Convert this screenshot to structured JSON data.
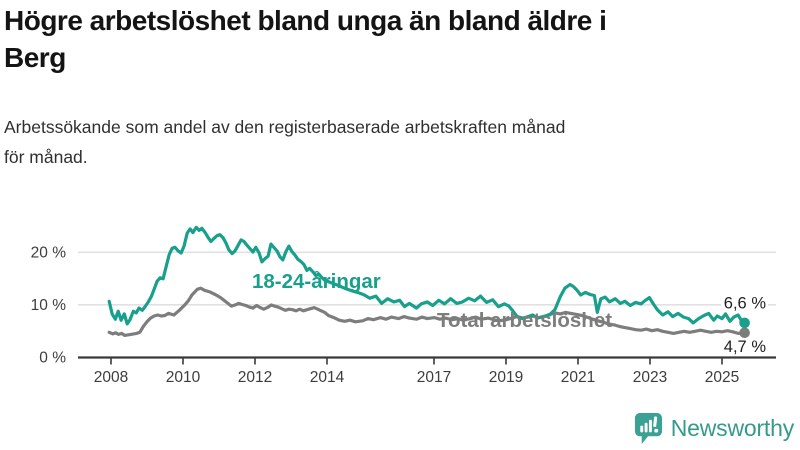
{
  "header": {
    "title_line1": "Högre arbetslöshet bland unga än bland äldre i",
    "title_line2": "Berg",
    "subtitle_line1": "Arbetssökande som andel av den registerbaserade arbetskraften månad",
    "subtitle_line2": "för månad."
  },
  "logo": {
    "name": "Newsworthy",
    "color": "#35998C"
  },
  "chart_data": {
    "type": "line",
    "title": "Högre arbetslöshet bland unga än bland äldre i Berg",
    "subtitle": "Arbetssökande som andel av den registerbaserade arbetskraften månad för månad.",
    "unit": "percent",
    "grid": "horizontal",
    "legend": "inline-labels",
    "x_axis": {
      "ticks": [
        "2008",
        "2010",
        "2012",
        "2014",
        "2017",
        "2019",
        "2021",
        "2023",
        "2025"
      ],
      "range": [
        2007.9,
        2025.75
      ]
    },
    "y_axis": {
      "ticks": [
        {
          "value": 0,
          "label": "0 %"
        },
        {
          "value": 10,
          "label": "10 %"
        },
        {
          "value": 20,
          "label": "20 %"
        }
      ],
      "range": [
        0,
        26
      ]
    },
    "series": [
      {
        "name": "18-24-åringar",
        "color": "#19A08C",
        "end_label": "6,6 %",
        "end_value": 6.6,
        "points": [
          [
            2007.95,
            10.7
          ],
          [
            2008.03,
            8.3
          ],
          [
            2008.12,
            7.3
          ],
          [
            2008.2,
            8.8
          ],
          [
            2008.28,
            7.1
          ],
          [
            2008.37,
            8.3
          ],
          [
            2008.45,
            6.4
          ],
          [
            2008.53,
            7.2
          ],
          [
            2008.62,
            8.8
          ],
          [
            2008.7,
            8.5
          ],
          [
            2008.78,
            9.4
          ],
          [
            2008.87,
            9.0
          ],
          [
            2008.95,
            9.7
          ],
          [
            2009.03,
            10.5
          ],
          [
            2009.12,
            11.6
          ],
          [
            2009.2,
            13.0
          ],
          [
            2009.28,
            14.5
          ],
          [
            2009.37,
            15.2
          ],
          [
            2009.45,
            15.0
          ],
          [
            2009.53,
            17.2
          ],
          [
            2009.62,
            19.6
          ],
          [
            2009.7,
            20.8
          ],
          [
            2009.78,
            21.0
          ],
          [
            2009.87,
            20.3
          ],
          [
            2009.95,
            19.9
          ],
          [
            2010.03,
            21.2
          ],
          [
            2010.12,
            23.7
          ],
          [
            2010.2,
            24.5
          ],
          [
            2010.28,
            23.8
          ],
          [
            2010.37,
            24.8
          ],
          [
            2010.45,
            24.2
          ],
          [
            2010.53,
            24.6
          ],
          [
            2010.62,
            23.8
          ],
          [
            2010.7,
            22.9
          ],
          [
            2010.78,
            22.1
          ],
          [
            2010.87,
            22.7
          ],
          [
            2010.95,
            23.2
          ],
          [
            2011.03,
            23.4
          ],
          [
            2011.12,
            22.8
          ],
          [
            2011.2,
            21.8
          ],
          [
            2011.28,
            20.5
          ],
          [
            2011.37,
            19.8
          ],
          [
            2011.45,
            20.3
          ],
          [
            2011.53,
            21.3
          ],
          [
            2011.62,
            22.4
          ],
          [
            2011.7,
            22.1
          ],
          [
            2011.78,
            21.4
          ],
          [
            2011.87,
            20.7
          ],
          [
            2011.95,
            20.1
          ],
          [
            2012.03,
            21.0
          ],
          [
            2012.12,
            19.9
          ],
          [
            2012.2,
            18.2
          ],
          [
            2012.28,
            18.8
          ],
          [
            2012.37,
            19.3
          ],
          [
            2012.45,
            21.6
          ],
          [
            2012.53,
            21.0
          ],
          [
            2012.62,
            20.3
          ],
          [
            2012.7,
            19.2
          ],
          [
            2012.78,
            18.6
          ],
          [
            2012.87,
            20.2
          ],
          [
            2012.95,
            21.2
          ],
          [
            2013.03,
            20.2
          ],
          [
            2013.12,
            19.5
          ],
          [
            2013.2,
            18.7
          ],
          [
            2013.28,
            18.3
          ],
          [
            2013.37,
            17.7
          ],
          [
            2013.45,
            16.6
          ],
          [
            2013.53,
            17.0
          ],
          [
            2013.62,
            16.3
          ],
          [
            2013.7,
            15.6
          ],
          [
            2013.78,
            15.9
          ],
          [
            2013.87,
            15.2
          ],
          [
            2013.95,
            14.7
          ],
          [
            2014.1,
            14.3
          ],
          [
            2014.3,
            13.8
          ],
          [
            2014.5,
            13.2
          ],
          [
            2014.7,
            12.7
          ],
          [
            2014.9,
            12.3
          ],
          [
            2015.05,
            11.9
          ],
          [
            2015.2,
            11.3
          ],
          [
            2015.37,
            11.7
          ],
          [
            2015.53,
            10.3
          ],
          [
            2015.7,
            11.2
          ],
          [
            2015.87,
            10.6
          ],
          [
            2016.03,
            10.9
          ],
          [
            2016.17,
            9.7
          ],
          [
            2016.3,
            10.3
          ],
          [
            2016.5,
            9.4
          ],
          [
            2016.63,
            10.2
          ],
          [
            2016.8,
            10.6
          ],
          [
            2016.95,
            9.9
          ],
          [
            2017.12,
            10.9
          ],
          [
            2017.28,
            10.2
          ],
          [
            2017.45,
            11.2
          ],
          [
            2017.62,
            10.3
          ],
          [
            2017.78,
            10.6
          ],
          [
            2017.95,
            11.3
          ],
          [
            2018.12,
            10.8
          ],
          [
            2018.28,
            11.7
          ],
          [
            2018.45,
            10.5
          ],
          [
            2018.62,
            11.0
          ],
          [
            2018.78,
            9.7
          ],
          [
            2018.95,
            10.2
          ],
          [
            2019.07,
            9.8
          ],
          [
            2019.17,
            9.0
          ],
          [
            2019.3,
            7.8
          ],
          [
            2019.45,
            7.4
          ],
          [
            2019.6,
            7.8
          ],
          [
            2019.73,
            8.1
          ],
          [
            2019.87,
            7.5
          ],
          [
            2020.03,
            7.8
          ],
          [
            2020.2,
            8.1
          ],
          [
            2020.35,
            9.1
          ],
          [
            2020.5,
            11.6
          ],
          [
            2020.63,
            13.2
          ],
          [
            2020.77,
            13.9
          ],
          [
            2020.87,
            13.5
          ],
          [
            2020.97,
            12.8
          ],
          [
            2021.07,
            11.9
          ],
          [
            2021.2,
            12.4
          ],
          [
            2021.33,
            12.0
          ],
          [
            2021.45,
            11.8
          ],
          [
            2021.53,
            8.6
          ],
          [
            2021.63,
            11.2
          ],
          [
            2021.75,
            11.5
          ],
          [
            2021.87,
            10.6
          ],
          [
            2022.03,
            11.2
          ],
          [
            2022.17,
            10.3
          ],
          [
            2022.3,
            10.7
          ],
          [
            2022.45,
            9.9
          ],
          [
            2022.6,
            10.5
          ],
          [
            2022.75,
            10.2
          ],
          [
            2022.87,
            10.9
          ],
          [
            2022.98,
            11.4
          ],
          [
            2023.08,
            10.3
          ],
          [
            2023.2,
            9.1
          ],
          [
            2023.35,
            8.1
          ],
          [
            2023.5,
            8.7
          ],
          [
            2023.63,
            7.8
          ],
          [
            2023.78,
            8.4
          ],
          [
            2023.93,
            7.7
          ],
          [
            2024.07,
            7.4
          ],
          [
            2024.2,
            6.6
          ],
          [
            2024.35,
            7.4
          ],
          [
            2024.5,
            8.0
          ],
          [
            2024.63,
            8.4
          ],
          [
            2024.77,
            7.1
          ],
          [
            2024.87,
            7.9
          ],
          [
            2025.0,
            7.4
          ],
          [
            2025.1,
            8.3
          ],
          [
            2025.22,
            6.9
          ],
          [
            2025.33,
            7.7
          ],
          [
            2025.45,
            8.1
          ],
          [
            2025.55,
            6.9
          ],
          [
            2025.63,
            6.6
          ]
        ]
      },
      {
        "name": "Total arbetslöshet",
        "color": "#7D7D7D",
        "end_label": "4,7 %",
        "end_value": 4.7,
        "points": [
          [
            2007.95,
            4.8
          ],
          [
            2008.05,
            4.5
          ],
          [
            2008.13,
            4.7
          ],
          [
            2008.21,
            4.4
          ],
          [
            2008.3,
            4.6
          ],
          [
            2008.38,
            4.2
          ],
          [
            2008.46,
            4.3
          ],
          [
            2008.55,
            4.4
          ],
          [
            2008.63,
            4.5
          ],
          [
            2008.71,
            4.6
          ],
          [
            2008.8,
            4.8
          ],
          [
            2008.9,
            5.9
          ],
          [
            2009.0,
            6.8
          ],
          [
            2009.1,
            7.5
          ],
          [
            2009.2,
            7.9
          ],
          [
            2009.3,
            8.1
          ],
          [
            2009.4,
            7.9
          ],
          [
            2009.5,
            8.0
          ],
          [
            2009.6,
            8.4
          ],
          [
            2009.75,
            8.1
          ],
          [
            2009.9,
            9.0
          ],
          [
            2010.05,
            10.0
          ],
          [
            2010.15,
            10.8
          ],
          [
            2010.25,
            11.9
          ],
          [
            2010.4,
            13.0
          ],
          [
            2010.5,
            13.2
          ],
          [
            2010.6,
            12.8
          ],
          [
            2010.75,
            12.5
          ],
          [
            2010.9,
            12.0
          ],
          [
            2011.05,
            11.4
          ],
          [
            2011.2,
            10.6
          ],
          [
            2011.35,
            9.8
          ],
          [
            2011.45,
            10.0
          ],
          [
            2011.56,
            10.3
          ],
          [
            2011.65,
            10.1
          ],
          [
            2011.75,
            9.9
          ],
          [
            2011.85,
            9.6
          ],
          [
            2011.95,
            9.4
          ],
          [
            2012.05,
            9.9
          ],
          [
            2012.15,
            9.5
          ],
          [
            2012.25,
            9.2
          ],
          [
            2012.35,
            9.5
          ],
          [
            2012.46,
            10.0
          ],
          [
            2012.55,
            9.8
          ],
          [
            2012.65,
            9.6
          ],
          [
            2012.75,
            9.3
          ],
          [
            2012.85,
            9.0
          ],
          [
            2012.95,
            9.2
          ],
          [
            2013.05,
            9.1
          ],
          [
            2013.15,
            8.9
          ],
          [
            2013.25,
            9.2
          ],
          [
            2013.35,
            8.9
          ],
          [
            2013.45,
            9.1
          ],
          [
            2013.55,
            9.3
          ],
          [
            2013.65,
            9.5
          ],
          [
            2013.75,
            9.2
          ],
          [
            2013.85,
            8.9
          ],
          [
            2013.95,
            8.6
          ],
          [
            2014.05,
            8.0
          ],
          [
            2014.2,
            7.6
          ],
          [
            2014.35,
            7.1
          ],
          [
            2014.5,
            6.9
          ],
          [
            2014.65,
            7.1
          ],
          [
            2014.8,
            6.8
          ],
          [
            2015.0,
            7.0
          ],
          [
            2015.15,
            7.4
          ],
          [
            2015.3,
            7.2
          ],
          [
            2015.5,
            7.6
          ],
          [
            2015.65,
            7.3
          ],
          [
            2015.8,
            7.7
          ],
          [
            2016.0,
            7.4
          ],
          [
            2016.15,
            7.8
          ],
          [
            2016.3,
            7.5
          ],
          [
            2016.5,
            7.3
          ],
          [
            2016.65,
            7.7
          ],
          [
            2016.8,
            7.4
          ],
          [
            2017.0,
            7.6
          ],
          [
            2017.15,
            7.3
          ],
          [
            2017.3,
            7.5
          ],
          [
            2017.5,
            7.2
          ],
          [
            2017.65,
            7.4
          ],
          [
            2017.8,
            7.1
          ],
          [
            2018.0,
            7.4
          ],
          [
            2018.15,
            7.7
          ],
          [
            2018.3,
            7.3
          ],
          [
            2018.5,
            7.5
          ],
          [
            2018.65,
            7.2
          ],
          [
            2018.8,
            7.0
          ],
          [
            2019.0,
            7.2
          ],
          [
            2019.15,
            7.5
          ],
          [
            2019.3,
            7.8
          ],
          [
            2019.45,
            7.5
          ],
          [
            2019.6,
            7.7
          ],
          [
            2019.75,
            7.9
          ],
          [
            2019.9,
            7.6
          ],
          [
            2020.05,
            7.8
          ],
          [
            2020.2,
            8.2
          ],
          [
            2020.35,
            8.5
          ],
          [
            2020.5,
            8.3
          ],
          [
            2020.65,
            8.6
          ],
          [
            2020.8,
            8.4
          ],
          [
            2020.95,
            8.2
          ],
          [
            2021.1,
            8.0
          ],
          [
            2021.25,
            7.7
          ],
          [
            2021.4,
            7.3
          ],
          [
            2021.55,
            7.0
          ],
          [
            2021.7,
            6.7
          ],
          [
            2021.85,
            6.4
          ],
          [
            2022.0,
            6.2
          ],
          [
            2022.15,
            5.9
          ],
          [
            2022.3,
            5.7
          ],
          [
            2022.45,
            5.5
          ],
          [
            2022.6,
            5.3
          ],
          [
            2022.75,
            5.2
          ],
          [
            2022.9,
            5.4
          ],
          [
            2023.05,
            5.1
          ],
          [
            2023.2,
            5.3
          ],
          [
            2023.35,
            5.0
          ],
          [
            2023.5,
            4.8
          ],
          [
            2023.65,
            4.6
          ],
          [
            2023.8,
            4.8
          ],
          [
            2023.95,
            5.0
          ],
          [
            2024.1,
            4.8
          ],
          [
            2024.25,
            5.0
          ],
          [
            2024.4,
            5.2
          ],
          [
            2024.55,
            5.0
          ],
          [
            2024.7,
            4.8
          ],
          [
            2024.85,
            5.0
          ],
          [
            2025.0,
            4.9
          ],
          [
            2025.15,
            5.1
          ],
          [
            2025.3,
            4.9
          ],
          [
            2025.45,
            4.6
          ],
          [
            2025.63,
            4.7
          ]
        ]
      }
    ]
  }
}
